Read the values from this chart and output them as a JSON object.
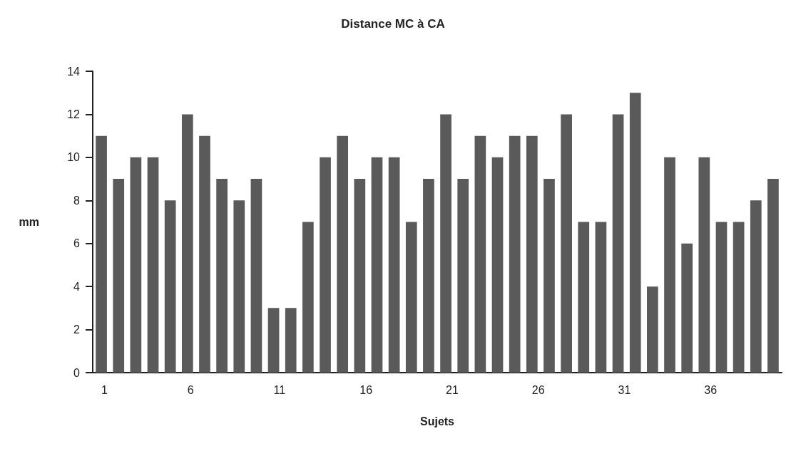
{
  "chart_data": {
    "type": "bar",
    "title": "Distance MC à CA",
    "xlabel": "Sujets",
    "ylabel": "mm",
    "categories": [
      "1",
      null,
      null,
      null,
      null,
      "6",
      null,
      null,
      null,
      null,
      "11",
      null,
      null,
      null,
      null,
      "16",
      null,
      null,
      null,
      null,
      "21",
      null,
      null,
      null,
      null,
      "26",
      null,
      null,
      null,
      null,
      "31",
      null,
      null,
      null,
      null,
      "36",
      null,
      null,
      null,
      null
    ],
    "values": [
      11,
      9,
      10,
      10,
      8,
      12,
      11,
      9,
      8,
      9,
      3,
      3,
      7,
      10,
      11,
      9,
      10,
      10,
      7,
      9,
      12,
      9,
      11,
      10,
      11,
      11,
      9,
      12,
      7,
      7,
      12,
      13,
      4,
      10,
      6,
      10,
      7,
      7,
      8,
      9
    ],
    "color": "#5a5a5a",
    "ylim": [
      0,
      14
    ],
    "yticks": [
      0,
      2,
      4,
      6,
      8,
      10,
      12,
      14
    ],
    "grid": false
  }
}
